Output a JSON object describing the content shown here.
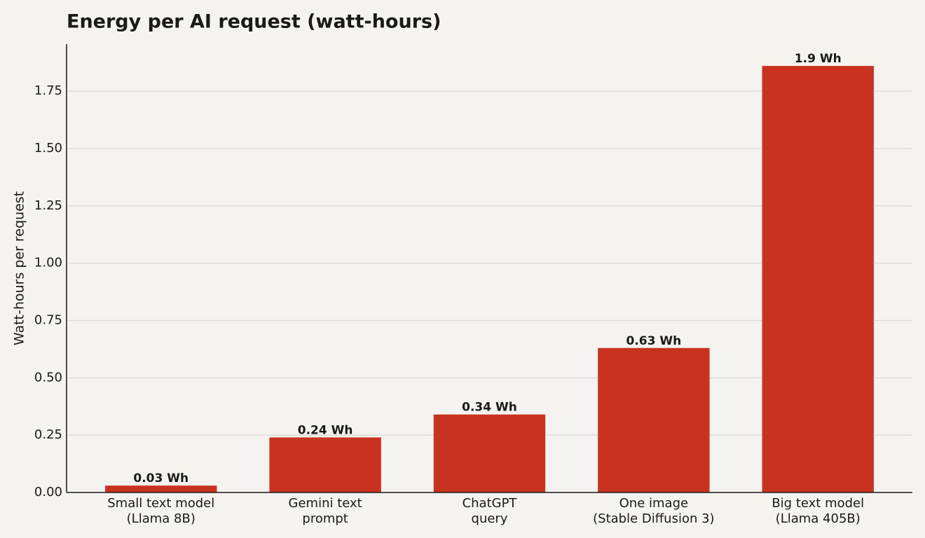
{
  "chart_data": {
    "type": "bar",
    "title": "Energy per AI request (watt-hours)",
    "y_label": "Watt-hours per request",
    "categories": [
      "Small text model\n(Llama 8B)",
      "Gemini text\nprompt",
      "ChatGPT\nquery",
      "One image\n(Stable Diffusion 3)",
      "Big text model\n(Llama 405B)"
    ],
    "values": [
      0.03,
      0.24,
      0.34,
      0.63,
      1.86
    ],
    "value_labels": [
      "0.03 Wh",
      "0.24 Wh",
      "0.34 Wh",
      "0.63 Wh",
      "1.9 Wh"
    ],
    "color": "#c9321f",
    "ylim": [
      0,
      1.955
    ],
    "yticks": [
      {
        "value": 0,
        "label": "0.00"
      },
      {
        "value": 0.25,
        "label": "0.25"
      },
      {
        "value": 0.5,
        "label": "0.50"
      },
      {
        "value": 0.75,
        "label": "0.75"
      },
      {
        "value": 1,
        "label": "1.00"
      },
      {
        "value": 1.25,
        "label": "1.25"
      },
      {
        "value": 1.5,
        "label": "1.50"
      },
      {
        "value": 1.75,
        "label": "1.75"
      }
    ],
    "grid": true
  }
}
